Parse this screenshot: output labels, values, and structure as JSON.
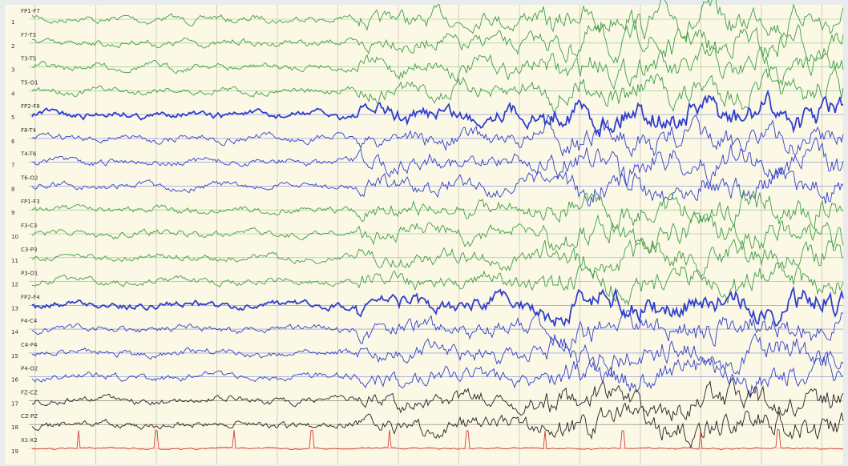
{
  "channels": [
    {
      "number": "1",
      "label": "FP1-F7",
      "color": "#3f9e45"
    },
    {
      "number": "2",
      "label": "F7-T3",
      "color": "#3f9e45"
    },
    {
      "number": "3",
      "label": "T3-T5",
      "color": "#3f9e45"
    },
    {
      "number": "4",
      "label": "T5-O1",
      "color": "#3f9e45"
    },
    {
      "number": "5",
      "label": "FP2-F8",
      "color": "#2f3fcc"
    },
    {
      "number": "6",
      "label": "F8-T4",
      "color": "#2f3fcc"
    },
    {
      "number": "7",
      "label": "T4-T6",
      "color": "#2f3fcc"
    },
    {
      "number": "8",
      "label": "T6-O2",
      "color": "#2f3fcc"
    },
    {
      "number": "9",
      "label": "FP1-F3",
      "color": "#3f9e45"
    },
    {
      "number": "10",
      "label": "F3-C3",
      "color": "#3f9e45"
    },
    {
      "number": "11",
      "label": "C3-P3",
      "color": "#3f9e45"
    },
    {
      "number": "12",
      "label": "P3-O1",
      "color": "#3f9e45"
    },
    {
      "number": "13",
      "label": "FP2-F4",
      "color": "#2f3fcc"
    },
    {
      "number": "14",
      "label": "F4-C4",
      "color": "#2f3fcc"
    },
    {
      "number": "15",
      "label": "C4-P4",
      "color": "#2f3fcc"
    },
    {
      "number": "16",
      "label": "P4-O2",
      "color": "#2f3fcc"
    },
    {
      "number": "17",
      "label": "FZ-CZ",
      "color": "#222222"
    },
    {
      "number": "18",
      "label": "CZ-PZ",
      "color": "#222222"
    },
    {
      "number": "19",
      "label": "X1-X2",
      "color": "#d8403a"
    }
  ]
}
